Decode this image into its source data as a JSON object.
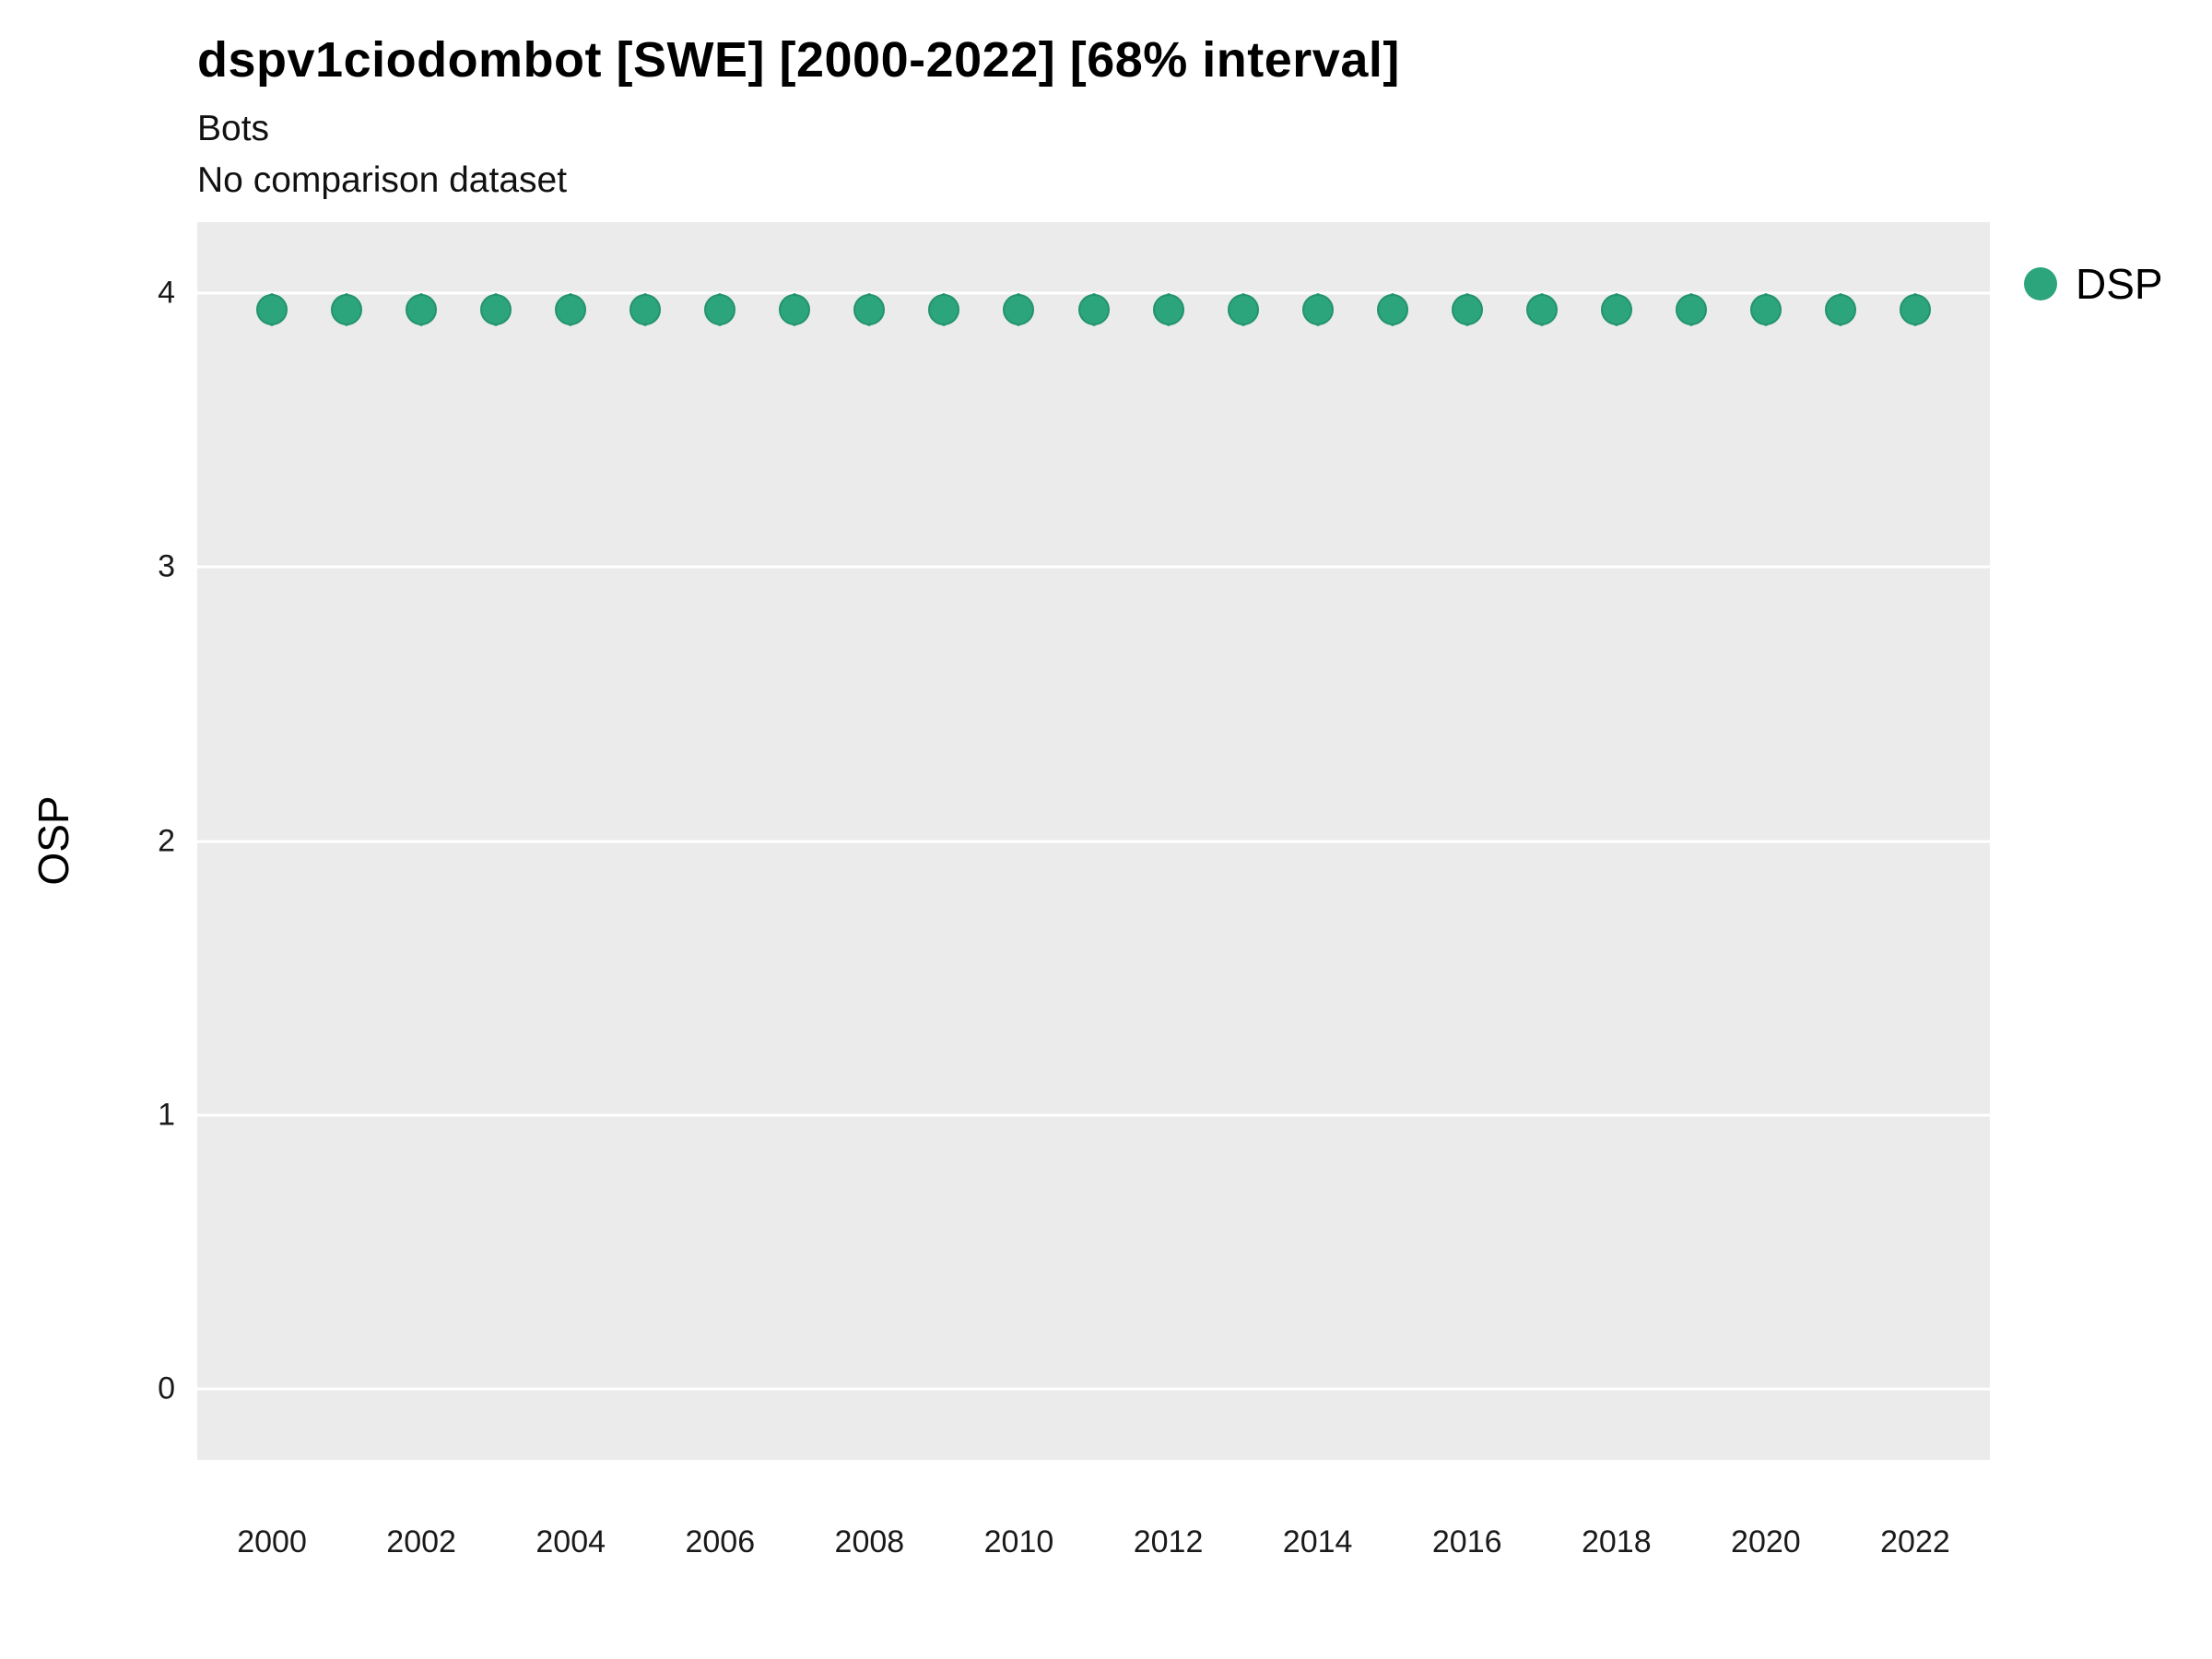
{
  "header": {
    "title": "dspv1ciodombot [SWE] [2000-2022] [68% interval]",
    "subtitle": "Bots",
    "subtitle2": "No comparison dataset"
  },
  "axes": {
    "y_label": "OSP",
    "x_label": ""
  },
  "legend": {
    "position": "right",
    "entries": [
      {
        "label": "DSP",
        "color": "#2CA57C"
      }
    ]
  },
  "chart_data": {
    "type": "scatter",
    "title": "dspv1ciodombot [SWE] [2000-2022] [68% interval]",
    "subtitle": [
      "Bots",
      "No comparison dataset"
    ],
    "xlabel": "",
    "ylabel": "OSP",
    "x": [
      2000,
      2001,
      2002,
      2003,
      2004,
      2005,
      2006,
      2007,
      2008,
      2009,
      2010,
      2011,
      2012,
      2013,
      2014,
      2015,
      2016,
      2017,
      2018,
      2019,
      2020,
      2021,
      2022
    ],
    "series": [
      {
        "name": "DSP",
        "color": "#2CA57C",
        "edge_color": "#23936F",
        "values": [
          3.94,
          3.94,
          3.94,
          3.94,
          3.94,
          3.94,
          3.94,
          3.94,
          3.94,
          3.94,
          3.94,
          3.94,
          3.94,
          3.94,
          3.94,
          3.94,
          3.94,
          3.94,
          3.94,
          3.94,
          3.94,
          3.94,
          3.94
        ],
        "interval_low": [
          3.88,
          3.88,
          3.88,
          3.88,
          3.88,
          3.88,
          3.88,
          3.88,
          3.88,
          3.88,
          3.88,
          3.88,
          3.88,
          3.88,
          3.88,
          3.88,
          3.88,
          3.88,
          3.88,
          3.88,
          3.88,
          3.88,
          3.88
        ],
        "interval_high": [
          4.0,
          4.0,
          4.0,
          4.0,
          4.0,
          4.0,
          4.0,
          4.0,
          4.0,
          4.0,
          4.0,
          4.0,
          4.0,
          4.0,
          4.0,
          4.0,
          4.0,
          4.0,
          4.0,
          4.0,
          4.0,
          4.0,
          4.0
        ]
      }
    ],
    "xlim": [
      1999,
      2023
    ],
    "ylim": [
      -0.26,
      4.26
    ],
    "xticks": [
      2000,
      2002,
      2004,
      2006,
      2008,
      2010,
      2012,
      2014,
      2016,
      2018,
      2020,
      2022
    ],
    "yticks": [
      0,
      1,
      2,
      3,
      4
    ],
    "grid": true,
    "panel_bg": "#EBEBEB",
    "grid_color": "#FFFFFF",
    "legend_position": "right"
  }
}
